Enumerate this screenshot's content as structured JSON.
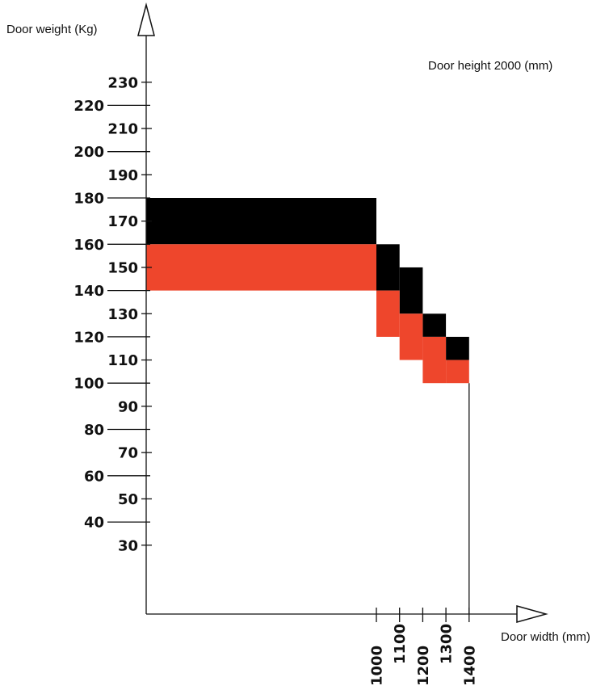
{
  "chart_data": {
    "type": "area",
    "title": "Door height 2000 (mm)",
    "ylabel": "Door weight (Kg)",
    "xlabel": "Door width (mm)",
    "colors": {
      "black_band": "#000000",
      "red_band": "#ee462c",
      "axis": "#111111"
    },
    "x_ticks": [
      1000,
      1100,
      1200,
      1300,
      1400
    ],
    "x_tick_labels": [
      "1000",
      "1100",
      "1200",
      "1300",
      "1400"
    ],
    "y_ticks": [
      30,
      40,
      50,
      60,
      70,
      80,
      90,
      100,
      110,
      120,
      130,
      140,
      150,
      160,
      170,
      180,
      190,
      200,
      210,
      220,
      230
    ],
    "y_tick_labels": [
      "30",
      "40",
      "50",
      "60",
      "70",
      "80",
      "90",
      "100",
      "110",
      "120",
      "130",
      "140",
      "150",
      "160",
      "170",
      "180",
      "190",
      "200",
      "210",
      "220",
      "230"
    ],
    "series": [
      {
        "color": "black",
        "regions": [
          {
            "x": [
              0,
              1000
            ],
            "y": [
              160,
              180
            ]
          },
          {
            "x": [
              1000,
              1100
            ],
            "y": [
              140,
              160
            ]
          },
          {
            "x": [
              1100,
              1200
            ],
            "y": [
              130,
              150
            ]
          },
          {
            "x": [
              1200,
              1300
            ],
            "y": [
              120,
              130
            ]
          },
          {
            "x": [
              1300,
              1400
            ],
            "y": [
              110,
              120
            ]
          }
        ]
      },
      {
        "color": "red",
        "regions": [
          {
            "x": [
              0,
              1000
            ],
            "y": [
              140,
              160
            ]
          },
          {
            "x": [
              1000,
              1100
            ],
            "y": [
              120,
              140
            ]
          },
          {
            "x": [
              1100,
              1200
            ],
            "y": [
              110,
              130
            ]
          },
          {
            "x": [
              1200,
              1300
            ],
            "y": [
              100,
              120
            ]
          },
          {
            "x": [
              1300,
              1400
            ],
            "y": [
              100,
              110
            ]
          }
        ]
      }
    ],
    "guide_line": {
      "x": 1400,
      "y": [
        0,
        100
      ]
    }
  }
}
